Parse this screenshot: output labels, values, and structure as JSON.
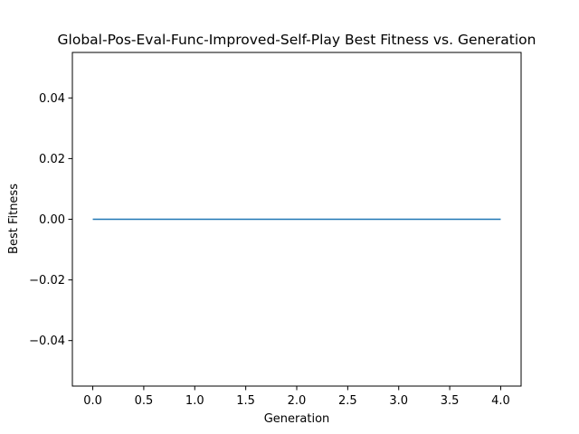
{
  "chart_data": {
    "type": "line",
    "title": "Global-Pos-Eval-Func-Improved-Self-Play Best Fitness vs. Generation",
    "xlabel": "Generation",
    "ylabel": "Best Fitness",
    "x": [
      0,
      1,
      2,
      3,
      4
    ],
    "series": [
      {
        "values": [
          0,
          0,
          0,
          0,
          0
        ],
        "color": "#1f77b4"
      }
    ],
    "xlim": [
      -0.2,
      4.2
    ],
    "ylim": [
      -0.055,
      0.055
    ],
    "xticks": [
      0.0,
      0.5,
      1.0,
      1.5,
      2.0,
      2.5,
      3.0,
      3.5,
      4.0
    ],
    "xtick_labels": [
      "0.0",
      "0.5",
      "1.0",
      "1.5",
      "2.0",
      "2.5",
      "3.0",
      "3.5",
      "4.0"
    ],
    "yticks": [
      -0.04,
      -0.02,
      0.0,
      0.02,
      0.04
    ],
    "ytick_labels": [
      "−0.04",
      "−0.02",
      "0.00",
      "0.02",
      "0.04"
    ],
    "grid": false,
    "legend": "none"
  }
}
